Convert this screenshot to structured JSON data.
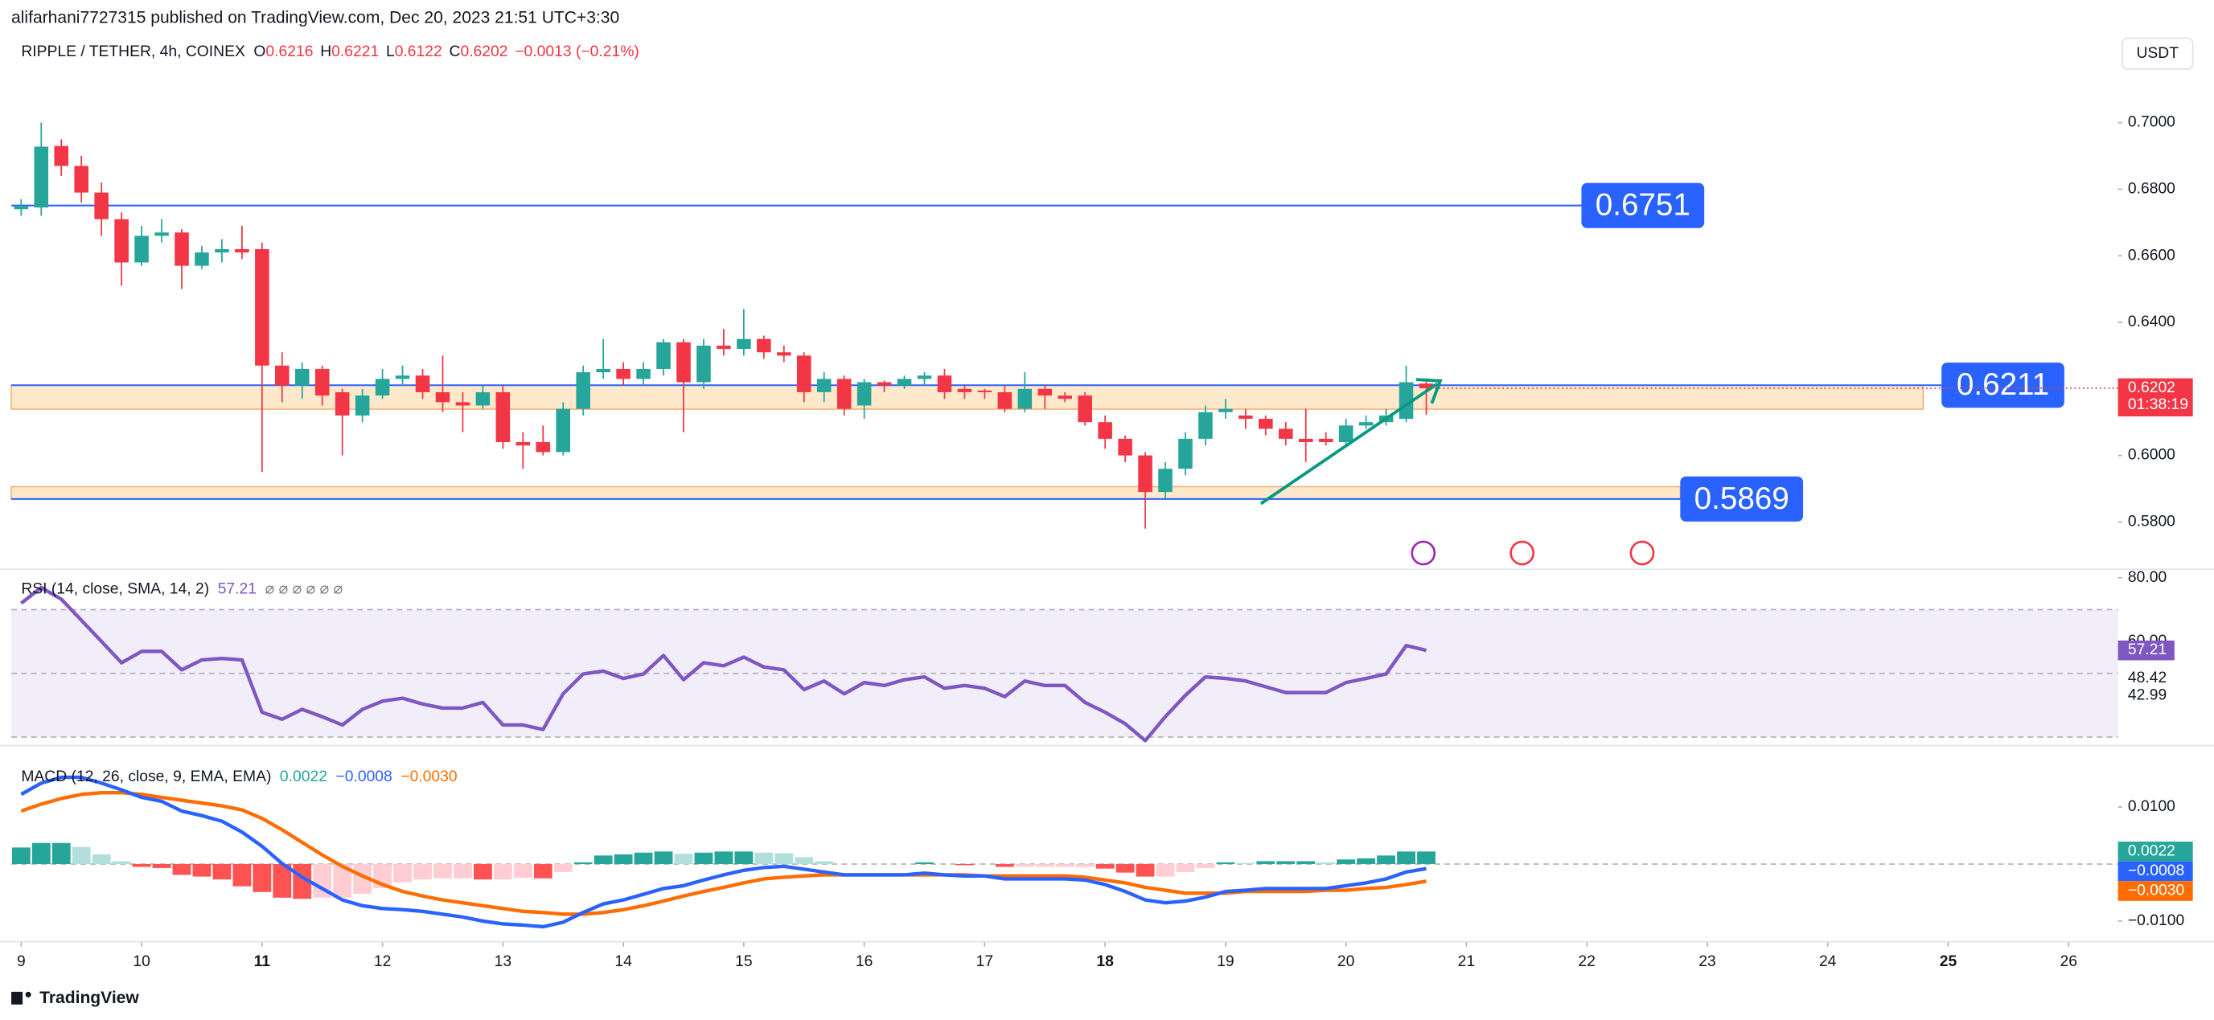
{
  "header": {
    "publisher": "alifarhani7727315 published on TradingView.com, Dec 20, 2023 21:51 UTC+3:30",
    "footer": "TradingView"
  },
  "chart_data": {
    "type": "candlestick",
    "title": "RIPPLE / TETHER, 4h, COINEX",
    "ohlc_keys": [
      "O",
      "H",
      "L",
      "C"
    ],
    "change": "−0.0013 (−0.21%)",
    "currency": "USDT",
    "up_color": "#26a69a",
    "down_color": "#f23645",
    "candles": [
      [
        0.674,
        0.677,
        0.672,
        0.675
      ],
      [
        0.6745,
        0.7,
        0.672,
        0.6928
      ],
      [
        0.693,
        0.695,
        0.684,
        0.687
      ],
      [
        0.687,
        0.69,
        0.676,
        0.679
      ],
      [
        0.679,
        0.682,
        0.666,
        0.671
      ],
      [
        0.671,
        0.673,
        0.651,
        0.658
      ],
      [
        0.658,
        0.669,
        0.657,
        0.666
      ],
      [
        0.666,
        0.671,
        0.664,
        0.667
      ],
      [
        0.667,
        0.668,
        0.65,
        0.657
      ],
      [
        0.657,
        0.663,
        0.656,
        0.661
      ],
      [
        0.661,
        0.665,
        0.658,
        0.662
      ],
      [
        0.662,
        0.669,
        0.659,
        0.661
      ],
      [
        0.662,
        0.664,
        0.595,
        0.627
      ],
      [
        0.627,
        0.631,
        0.616,
        0.621
      ],
      [
        0.621,
        0.628,
        0.617,
        0.626
      ],
      [
        0.626,
        0.627,
        0.615,
        0.618
      ],
      [
        0.619,
        0.62,
        0.6,
        0.612
      ],
      [
        0.612,
        0.62,
        0.61,
        0.618
      ],
      [
        0.618,
        0.626,
        0.617,
        0.623
      ],
      [
        0.623,
        0.627,
        0.621,
        0.624
      ],
      [
        0.624,
        0.626,
        0.617,
        0.619
      ],
      [
        0.619,
        0.63,
        0.613,
        0.616
      ],
      [
        0.616,
        0.619,
        0.607,
        0.615
      ],
      [
        0.615,
        0.621,
        0.614,
        0.619
      ],
      [
        0.619,
        0.621,
        0.602,
        0.604
      ],
      [
        0.604,
        0.607,
        0.596,
        0.603
      ],
      [
        0.604,
        0.609,
        0.6,
        0.601
      ],
      [
        0.601,
        0.616,
        0.6,
        0.614
      ],
      [
        0.614,
        0.627,
        0.612,
        0.625
      ],
      [
        0.625,
        0.635,
        0.623,
        0.626
      ],
      [
        0.626,
        0.628,
        0.621,
        0.623
      ],
      [
        0.623,
        0.628,
        0.621,
        0.626
      ],
      [
        0.626,
        0.635,
        0.624,
        0.634
      ],
      [
        0.634,
        0.635,
        0.607,
        0.622
      ],
      [
        0.622,
        0.635,
        0.62,
        0.633
      ],
      [
        0.633,
        0.638,
        0.63,
        0.632
      ],
      [
        0.632,
        0.644,
        0.63,
        0.635
      ],
      [
        0.635,
        0.636,
        0.629,
        0.631
      ],
      [
        0.631,
        0.633,
        0.628,
        0.63
      ],
      [
        0.63,
        0.631,
        0.616,
        0.619
      ],
      [
        0.619,
        0.625,
        0.616,
        0.623
      ],
      [
        0.623,
        0.624,
        0.612,
        0.614
      ],
      [
        0.615,
        0.623,
        0.611,
        0.622
      ],
      [
        0.622,
        0.6225,
        0.619,
        0.621
      ],
      [
        0.621,
        0.624,
        0.62,
        0.623
      ],
      [
        0.623,
        0.625,
        0.621,
        0.624
      ],
      [
        0.624,
        0.626,
        0.617,
        0.619
      ],
      [
        0.62,
        0.621,
        0.617,
        0.619
      ],
      [
        0.6195,
        0.62,
        0.617,
        0.619
      ],
      [
        0.619,
        0.621,
        0.613,
        0.614
      ],
      [
        0.614,
        0.625,
        0.613,
        0.62
      ],
      [
        0.62,
        0.621,
        0.614,
        0.618
      ],
      [
        0.618,
        0.619,
        0.616,
        0.617
      ],
      [
        0.618,
        0.619,
        0.609,
        0.61
      ],
      [
        0.61,
        0.612,
        0.602,
        0.605
      ],
      [
        0.605,
        0.606,
        0.598,
        0.6
      ],
      [
        0.6,
        0.601,
        0.578,
        0.589
      ],
      [
        0.589,
        0.598,
        0.587,
        0.596
      ],
      [
        0.596,
        0.607,
        0.594,
        0.605
      ],
      [
        0.605,
        0.615,
        0.603,
        0.613
      ],
      [
        0.613,
        0.617,
        0.611,
        0.614
      ],
      [
        0.612,
        0.614,
        0.608,
        0.611
      ],
      [
        0.611,
        0.612,
        0.606,
        0.608
      ],
      [
        0.608,
        0.61,
        0.603,
        0.605
      ],
      [
        0.605,
        0.614,
        0.598,
        0.604
      ],
      [
        0.605,
        0.607,
        0.603,
        0.604
      ],
      [
        0.604,
        0.611,
        0.603,
        0.609
      ],
      [
        0.609,
        0.612,
        0.608,
        0.61
      ],
      [
        0.61,
        0.614,
        0.609,
        0.612
      ],
      [
        0.611,
        0.627,
        0.61,
        0.622
      ],
      [
        0.6216,
        0.6221,
        0.6122,
        0.6202
      ]
    ],
    "ylim": [
      0.566,
      0.725
    ],
    "yticks": [
      {
        "value": 0.7,
        "label": "0.7000"
      },
      {
        "value": 0.68,
        "label": "0.6800"
      },
      {
        "value": 0.66,
        "label": "0.6600"
      },
      {
        "value": 0.64,
        "label": "0.6400"
      },
      {
        "value": 0.6,
        "label": "0.6000"
      },
      {
        "value": 0.58,
        "label": "0.5800"
      }
    ],
    "xlim": [
      8.918,
      26.41
    ],
    "xticks": [
      9,
      10,
      11,
      12,
      13,
      14,
      15,
      16,
      17,
      18,
      19,
      20,
      21,
      22,
      23,
      24,
      25,
      26
    ],
    "xticks_bold": [
      11,
      18,
      25
    ],
    "levels": [
      {
        "value": 0.6751,
        "color": "#2962ff"
      },
      {
        "value": 0.6211,
        "color": "#2962ff"
      },
      {
        "value": 0.5869,
        "color": "#2962ff"
      }
    ],
    "zones": [
      {
        "top": 0.6211,
        "bottom": 0.6139,
        "color": "#ffe9cc",
        "border": "#f5a66a"
      },
      {
        "top": 0.5906,
        "bottom": 0.5869,
        "color": "#ffe9cc",
        "border": "#f5a66a"
      }
    ],
    "countdown": "01:38:19",
    "rsi": {
      "title": "RSI (14, close, SMA, 14, 2)",
      "flags": "⌀ ⌀ ⌀ ⌀ ⌀ ⌀",
      "color": "#7e57c2",
      "values": [
        72.0,
        76.9,
        73.3,
        66.7,
        60.0,
        53.3,
        56.9,
        56.9,
        51.1,
        54.2,
        54.7,
        54.2,
        37.8,
        35.6,
        38.7,
        36.4,
        33.8,
        38.7,
        41.3,
        42.2,
        40.4,
        39.1,
        39.1,
        40.9,
        33.8,
        33.8,
        32.4,
        43.6,
        49.8,
        50.7,
        48.4,
        49.8,
        55.6,
        48.0,
        53.3,
        52.4,
        55.1,
        52.0,
        51.1,
        44.9,
        47.6,
        43.6,
        47.1,
        46.2,
        48.0,
        48.9,
        45.3,
        46.2,
        45.3,
        42.7,
        47.6,
        46.2,
        46.2,
        40.9,
        37.8,
        34.2,
        28.9,
        36.4,
        43.1,
        48.9,
        48.4,
        47.6,
        45.8,
        44.0,
        44.0,
        44.0,
        47.1,
        48.4,
        49.8,
        58.7,
        57.21
      ],
      "ylim": [
        28,
        82
      ],
      "yticks": [
        {
          "value": 80,
          "label": "80.00"
        },
        {
          "value": 60,
          "label": "60.00"
        }
      ],
      "band": [
        30,
        70
      ],
      "midline": 50,
      "axis_labels": [
        57.21,
        48.42,
        42.99
      ]
    },
    "macd": {
      "title": "MACD (12, 26, close, 9, EMA, EMA)",
      "ylim": [
        -0.013,
        0.0204
      ],
      "yticks": [
        {
          "value": 0.01,
          "label": "0.0100"
        },
        {
          "value": -0.01,
          "label": "−0.0100"
        }
      ],
      "histogram": {
        "colors": [
          "#26a69a",
          "#b2dfdb",
          "#ff5252",
          "#ffcdd2"
        ],
        "values": [
          0.0029,
          0.0037,
          0.0037,
          0.003,
          0.0017,
          0.0005,
          -0.0005,
          -0.0007,
          -0.0019,
          -0.0022,
          -0.0027,
          -0.0039,
          -0.0049,
          -0.0059,
          -0.0061,
          -0.0059,
          -0.0059,
          -0.0052,
          -0.0042,
          -0.0032,
          -0.0027,
          -0.0025,
          -0.0025,
          -0.0027,
          -0.0027,
          -0.0024,
          -0.0025,
          -0.0014,
          0.0003,
          0.0015,
          0.0017,
          0.002,
          0.0022,
          0.0018,
          0.002,
          0.0022,
          0.0022,
          0.002,
          0.0019,
          0.0012,
          0.0005,
          0,
          0,
          0,
          0,
          0.0003,
          0,
          -0.0002,
          0,
          -0.0005,
          -0.0005,
          -0.0005,
          -0.0005,
          -0.0005,
          -0.0008,
          -0.0015,
          -0.0022,
          -0.0022,
          -0.0014,
          -0.0007,
          0.0003,
          0.0002,
          0.0005,
          0.0005,
          0.0005,
          0.0003,
          0.0008,
          0.001,
          0.0015,
          0.0022,
          0.0022
        ]
      },
      "macd_line": {
        "color": "#2962ff",
        "values": [
          0.0122,
          0.0142,
          0.0152,
          0.0152,
          0.0142,
          0.013,
          0.0117,
          0.011,
          0.0093,
          0.0085,
          0.0075,
          0.0056,
          0.0031,
          0.0001,
          -0.0023,
          -0.0043,
          -0.0063,
          -0.0073,
          -0.0078,
          -0.008,
          -0.0083,
          -0.0088,
          -0.0093,
          -0.01,
          -0.0105,
          -0.0107,
          -0.011,
          -0.0102,
          -0.0085,
          -0.007,
          -0.0063,
          -0.0053,
          -0.0043,
          -0.0038,
          -0.0028,
          -0.0019,
          -0.0011,
          -0.0006,
          -0.0004,
          -0.0009,
          -0.0014,
          -0.0019,
          -0.0019,
          -0.0019,
          -0.0019,
          -0.0016,
          -0.0019,
          -0.0021,
          -0.0021,
          -0.0026,
          -0.0026,
          -0.0026,
          -0.0026,
          -0.0028,
          -0.0036,
          -0.0048,
          -0.0063,
          -0.0068,
          -0.0065,
          -0.0058,
          -0.0048,
          -0.0046,
          -0.0043,
          -0.0043,
          -0.0043,
          -0.0043,
          -0.0038,
          -0.0033,
          -0.0026,
          -0.0014,
          -0.0008
        ]
      },
      "signal_line": {
        "color": "#ff6d00",
        "values": [
          0.0093,
          0.0105,
          0.0115,
          0.0122,
          0.0125,
          0.0125,
          0.0122,
          0.0117,
          0.0112,
          0.0107,
          0.0102,
          0.0095,
          0.008,
          0.006,
          0.0038,
          0.0016,
          -0.0004,
          -0.0021,
          -0.0036,
          -0.0048,
          -0.0056,
          -0.0063,
          -0.0068,
          -0.0073,
          -0.0078,
          -0.0083,
          -0.0085,
          -0.0088,
          -0.0088,
          -0.0085,
          -0.008,
          -0.0073,
          -0.0065,
          -0.0056,
          -0.0048,
          -0.0041,
          -0.0033,
          -0.0026,
          -0.0023,
          -0.0021,
          -0.0019,
          -0.0019,
          -0.0019,
          -0.0019,
          -0.0019,
          -0.0019,
          -0.0019,
          -0.0019,
          -0.0021,
          -0.0021,
          -0.0021,
          -0.0021,
          -0.0021,
          -0.0023,
          -0.0028,
          -0.0033,
          -0.0041,
          -0.0046,
          -0.0051,
          -0.0051,
          -0.0051,
          -0.0048,
          -0.0048,
          -0.0048,
          -0.0048,
          -0.0046,
          -0.0046,
          -0.0043,
          -0.0041,
          -0.0036,
          -0.003
        ]
      },
      "axis_labels": [
        {
          "value": 0.0022,
          "label": "0.0022",
          "color": "#26a69a"
        },
        {
          "value": -0.0008,
          "label": "−0.0008",
          "color": "#2962ff"
        },
        {
          "value": -0.003,
          "label": "−0.0030",
          "color": "#ff6d00"
        }
      ]
    }
  }
}
